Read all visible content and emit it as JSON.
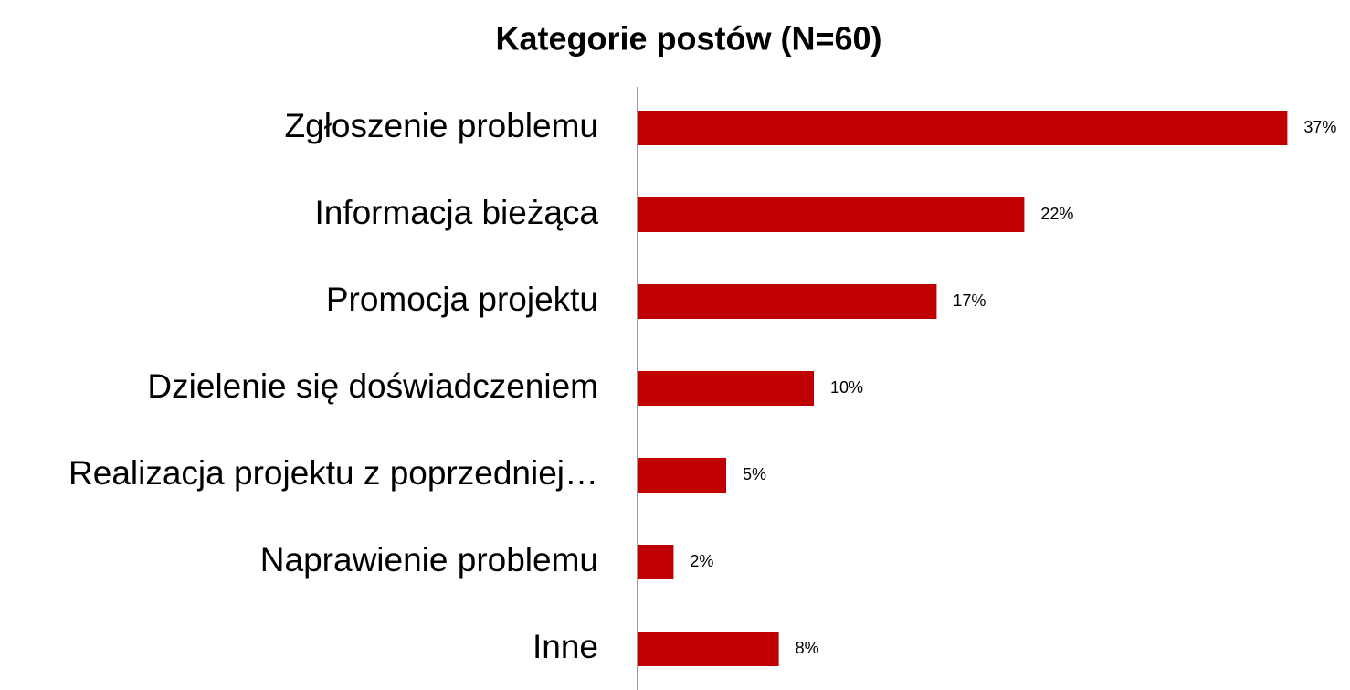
{
  "chart_data": {
    "type": "bar",
    "orientation": "horizontal",
    "title": "Kategorie postów (N=60)",
    "categories": [
      "Zgłoszenie problemu",
      "Informacja bieżąca",
      "Promocja projektu",
      "Dzielenie się doświadczeniem",
      "Realizacja projektu z poprzedniej…",
      "Naprawienie problemu",
      "Inne"
    ],
    "values": [
      37,
      22,
      17,
      10,
      5,
      2,
      8
    ],
    "value_labels": [
      "37%",
      "22%",
      "17%",
      "10%",
      "5%",
      "2%",
      "8%"
    ],
    "color": "#c00000"
  }
}
